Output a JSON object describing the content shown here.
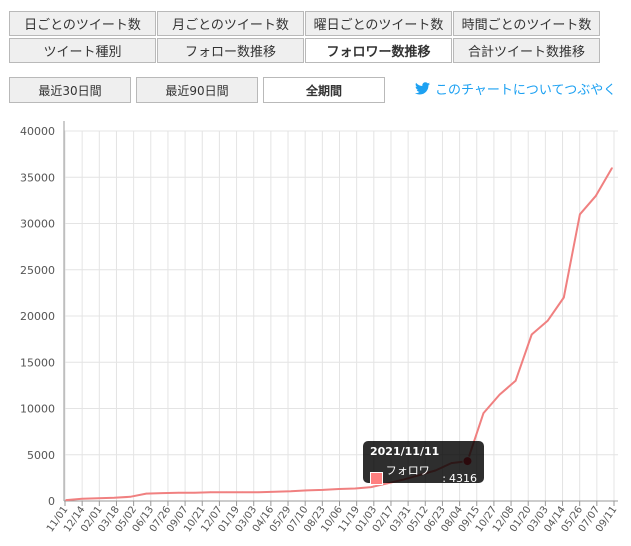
{
  "tabs_row1": [
    {
      "label": "日ごとのツイート数"
    },
    {
      "label": "月ごとのツイート数"
    },
    {
      "label": "曜日ごとのツイート数"
    },
    {
      "label": "時間ごとのツイート数"
    }
  ],
  "tabs_row2": [
    {
      "label": "ツイート種別"
    },
    {
      "label": "フォロー数推移"
    },
    {
      "label": "フォロワー数推移",
      "active": true
    },
    {
      "label": "合計ツイート数推移"
    }
  ],
  "ranges": [
    {
      "label": "最近30日間"
    },
    {
      "label": "最近90日間"
    },
    {
      "label": "全期間",
      "active": true
    }
  ],
  "tweet_link": {
    "label": "このチャートについてつぶやく",
    "icon": "twitter-bird-icon",
    "color": "#1da1f2"
  },
  "tooltip": {
    "date": "2021/11/11",
    "series": "フォロワー",
    "value": "4316"
  },
  "chart_data": {
    "type": "line",
    "title": "",
    "xlabel": "",
    "ylabel": "",
    "ylim": [
      0,
      40000
    ],
    "yticks": [
      0,
      5000,
      10000,
      15000,
      20000,
      25000,
      30000,
      35000,
      40000
    ],
    "xtick_labels": [
      "11/01",
      "12/14",
      "02/01",
      "03/18",
      "05/02",
      "06/13",
      "07/26",
      "09/07",
      "10/21",
      "12/07",
      "01/19",
      "03/03",
      "04/16",
      "05/29",
      "07/10",
      "08/23",
      "10/06",
      "11/19",
      "01/03",
      "02/17",
      "03/31",
      "05/12",
      "06/23",
      "08/04",
      "09/15",
      "10/27",
      "12/08",
      "01/20",
      "03/03",
      "04/14",
      "05/26",
      "07/07",
      "09/11"
    ],
    "grid": true,
    "series": [
      {
        "name": "フォロワー",
        "color": "#f08080",
        "values": [
          100,
          250,
          300,
          350,
          450,
          800,
          850,
          900,
          900,
          950,
          950,
          950,
          950,
          1000,
          1050,
          1150,
          1200,
          1300,
          1350,
          1500,
          1900,
          2300,
          2800,
          3300,
          4100,
          4316,
          9500,
          11500,
          13000,
          18000,
          19500,
          22000,
          31000,
          33000,
          36000
        ]
      }
    ],
    "highlight": {
      "index": 25,
      "value": 4316
    }
  }
}
